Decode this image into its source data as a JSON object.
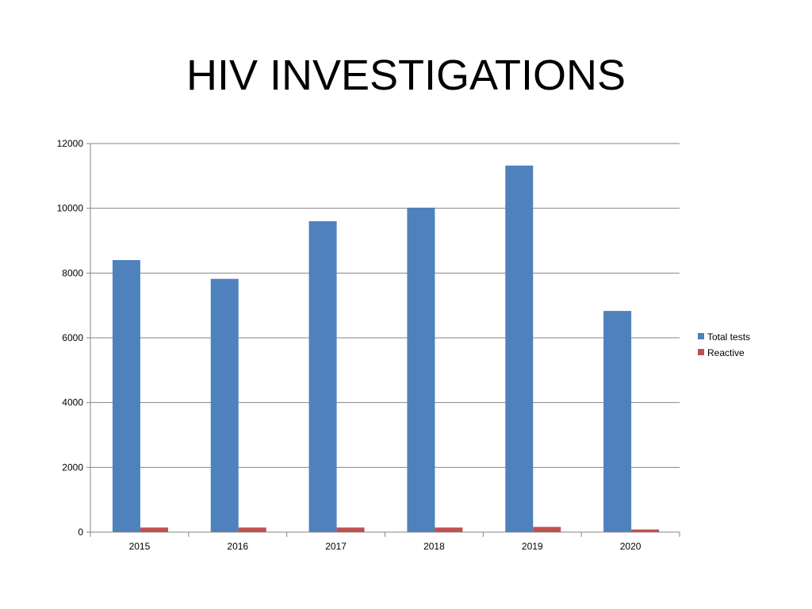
{
  "slide": {
    "title": "HIV INVESTIGATIONS"
  },
  "chart_data": {
    "type": "bar",
    "title": "",
    "xlabel": "",
    "ylabel": "",
    "categories": [
      "2015",
      "2016",
      "2017",
      "2018",
      "2019",
      "2020"
    ],
    "series": [
      {
        "name": "Total tests",
        "color": "#4F81BD",
        "values": [
          8400,
          7820,
          9600,
          10020,
          11320,
          6830
        ]
      },
      {
        "name": "Reactive",
        "color": "#C0504D",
        "values": [
          140,
          140,
          140,
          140,
          160,
          80
        ]
      }
    ],
    "ylim": [
      0,
      12000
    ],
    "yticks": [
      0,
      2000,
      4000,
      6000,
      8000,
      10000,
      12000
    ],
    "grid": true,
    "legend_position": "right"
  }
}
